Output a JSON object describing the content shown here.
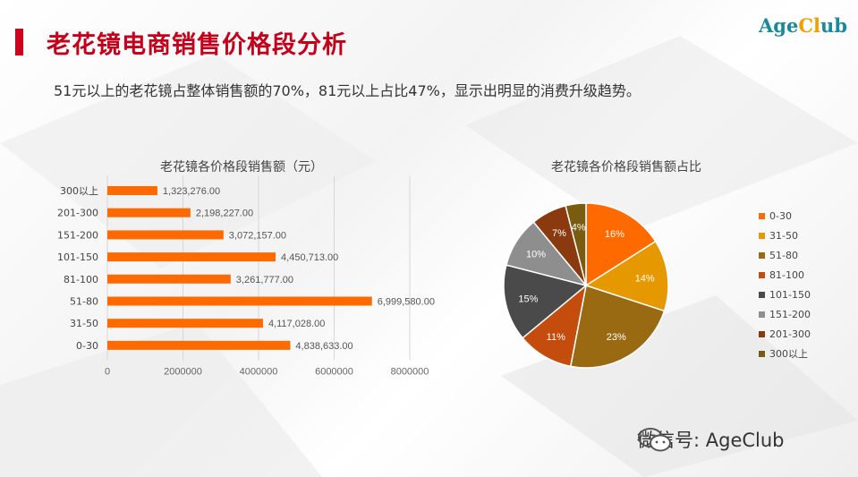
{
  "logo": {
    "age": "Age",
    "cl": "Cl",
    "ub": "ub"
  },
  "page_title": "老花镜电商销售价格段分析",
  "subtitle": "51元以上的老花镜占整体销售额的70%，81元以上占比47%，显示出明显的消费升级趋势。",
  "watermark": "微信号: AgeClub",
  "colors": {
    "bar": "#ff6a00",
    "accent": "#d0021b"
  },
  "chart_data": [
    {
      "type": "bar",
      "orientation": "horizontal",
      "title": "老花镜各价格段销售额（元）",
      "categories": [
        "0-30",
        "31-50",
        "51-80",
        "81-100",
        "101-150",
        "151-200",
        "201-300",
        "300以上"
      ],
      "values": [
        4838633,
        4117028,
        6999580,
        3261777,
        4450713,
        3072157,
        2198227,
        1323276
      ],
      "value_labels": [
        "4,838,633.00",
        "4,117,028.00",
        "6,999,580.00",
        "3,261,777.00",
        "4,450,713.00",
        "3,072,157.00",
        "2,198,227.00",
        "1,323,276.00"
      ],
      "xlim": [
        0,
        8000000
      ],
      "xticks": [
        0,
        2000000,
        4000000,
        6000000,
        8000000
      ],
      "xtick_labels": [
        "0",
        "2000000",
        "4000000",
        "6000000",
        "8000000"
      ],
      "grid": true,
      "color": "#ff6a00"
    },
    {
      "type": "pie",
      "title": "老花镜各价格段销售额占比",
      "legend_position": "right",
      "slices": [
        {
          "label": "0-30",
          "value": 16,
          "display": "16%",
          "color": "#ff6a00"
        },
        {
          "label": "31-50",
          "value": 14,
          "display": "14%",
          "color": "#e69800"
        },
        {
          "label": "51-80",
          "value": 23,
          "display": "23%",
          "color": "#9a6a12"
        },
        {
          "label": "81-100",
          "value": 11,
          "display": "11%",
          "color": "#c44c0c"
        },
        {
          "label": "101-150",
          "value": 15,
          "display": "15%",
          "color": "#4a4a4a"
        },
        {
          "label": "151-200",
          "value": 10,
          "display": "10%",
          "color": "#8e8e8e"
        },
        {
          "label": "201-300",
          "value": 7,
          "display": "7%",
          "color": "#8a3a0e"
        },
        {
          "label": "300以上",
          "value": 4,
          "display": "4%",
          "color": "#7a5c10"
        }
      ]
    }
  ]
}
